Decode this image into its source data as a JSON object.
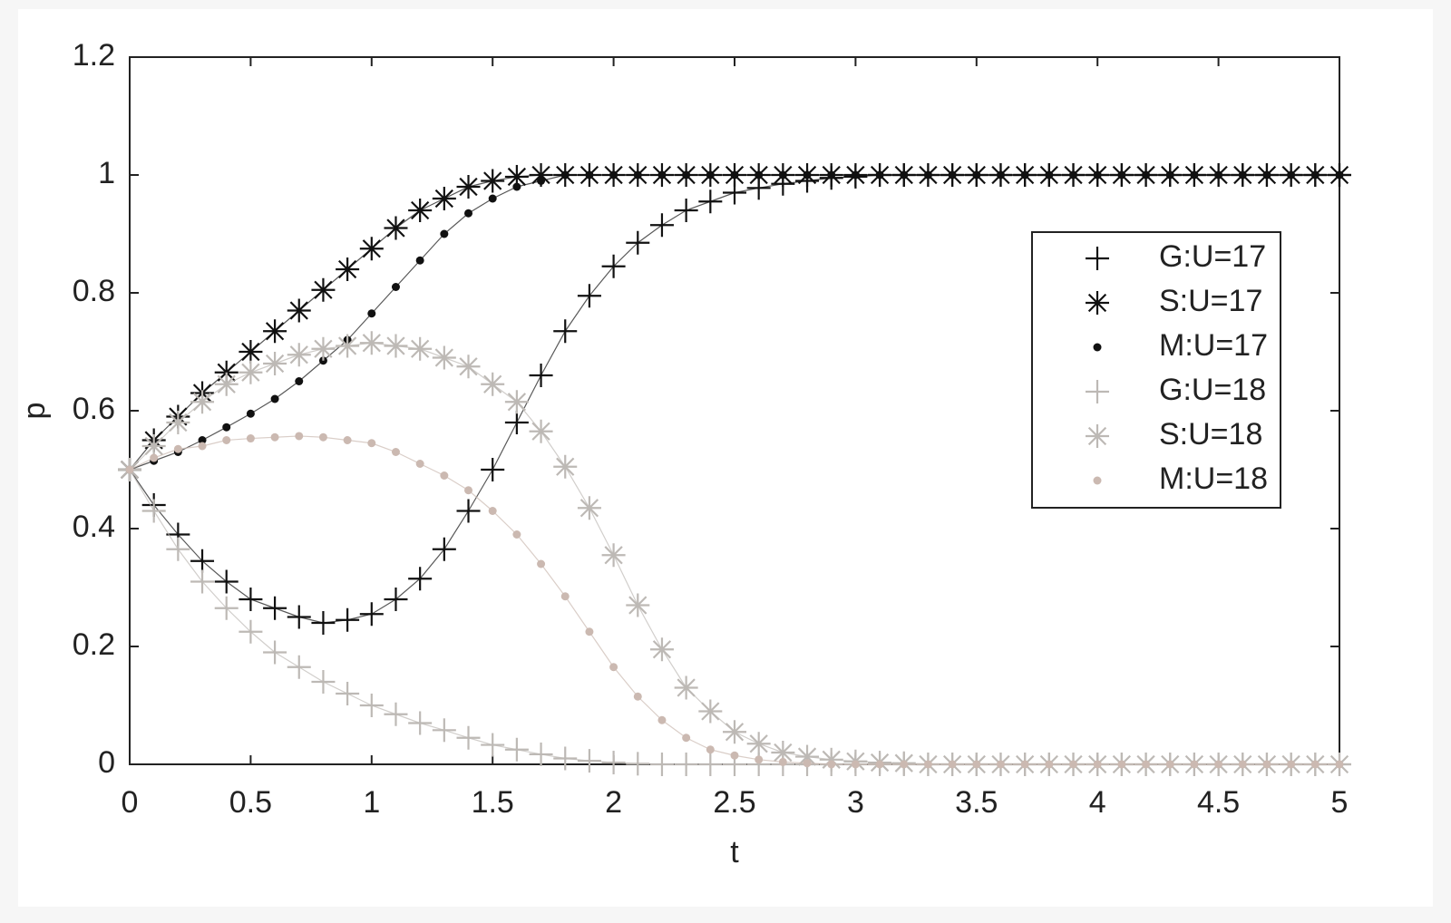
{
  "chart_data": {
    "type": "line",
    "x_label": "t",
    "y_label": "p",
    "x": [
      0,
      0.1,
      0.2,
      0.3,
      0.4,
      0.5,
      0.6,
      0.7,
      0.8,
      0.9,
      1.0,
      1.1,
      1.2,
      1.3,
      1.4,
      1.5,
      1.6,
      1.7,
      1.8,
      1.9,
      2.0,
      2.1,
      2.2,
      2.3,
      2.4,
      2.5,
      2.6,
      2.7,
      2.8,
      2.9,
      3.0,
      3.1,
      3.2,
      3.3,
      3.4,
      3.5,
      3.6,
      3.7,
      3.8,
      3.9,
      4.0,
      4.1,
      4.2,
      4.3,
      4.4,
      4.5,
      4.6,
      4.7,
      4.8,
      4.9,
      5.0
    ],
    "series": [
      {
        "name": "G:U=17",
        "color": "#111111",
        "marker": "plus",
        "values": [
          0.5,
          0.44,
          0.39,
          0.345,
          0.31,
          0.28,
          0.265,
          0.25,
          0.24,
          0.245,
          0.255,
          0.28,
          0.315,
          0.365,
          0.43,
          0.5,
          0.58,
          0.66,
          0.735,
          0.795,
          0.845,
          0.885,
          0.915,
          0.94,
          0.955,
          0.97,
          0.978,
          0.985,
          0.99,
          0.995,
          0.997,
          1,
          1,
          1,
          1,
          1,
          1,
          1,
          1,
          1,
          1,
          1,
          1,
          1,
          1,
          1,
          1,
          1,
          1,
          1,
          1
        ]
      },
      {
        "name": "S:U=17",
        "color": "#111111",
        "marker": "star",
        "values": [
          0.5,
          0.55,
          0.59,
          0.63,
          0.665,
          0.7,
          0.735,
          0.77,
          0.805,
          0.84,
          0.875,
          0.91,
          0.94,
          0.96,
          0.98,
          0.99,
          0.997,
          1,
          1,
          1,
          1,
          1,
          1,
          1,
          1,
          1,
          1,
          1,
          1,
          1,
          1,
          1,
          1,
          1,
          1,
          1,
          1,
          1,
          1,
          1,
          1,
          1,
          1,
          1,
          1,
          1,
          1,
          1,
          1,
          1,
          1
        ]
      },
      {
        "name": "M:U=17",
        "color": "#111111",
        "marker": "dot",
        "values": [
          0.5,
          0.515,
          0.53,
          0.55,
          0.572,
          0.595,
          0.62,
          0.65,
          0.685,
          0.72,
          0.765,
          0.81,
          0.855,
          0.9,
          0.935,
          0.96,
          0.98,
          0.99,
          1,
          1,
          1,
          1,
          1,
          1,
          1,
          1,
          1,
          1,
          1,
          1,
          1,
          1,
          1,
          1,
          1,
          1,
          1,
          1,
          1,
          1,
          1,
          1,
          1,
          1,
          1,
          1,
          1,
          1,
          1,
          1,
          1
        ]
      },
      {
        "name": "G:U=18",
        "color": "#bdb9b5",
        "marker": "plus",
        "values": [
          0.5,
          0.43,
          0.365,
          0.31,
          0.265,
          0.225,
          0.19,
          0.165,
          0.14,
          0.12,
          0.1,
          0.085,
          0.07,
          0.058,
          0.045,
          0.033,
          0.025,
          0.017,
          0.01,
          0.006,
          0.003,
          0.001,
          0,
          0,
          0,
          0,
          0,
          0,
          0,
          0,
          0,
          0,
          0,
          0,
          0,
          0,
          0,
          0,
          0,
          0,
          0,
          0,
          0,
          0,
          0,
          0,
          0,
          0,
          0,
          0,
          0
        ]
      },
      {
        "name": "S:U=18",
        "color": "#bdb9b5",
        "marker": "star",
        "values": [
          0.5,
          0.54,
          0.58,
          0.615,
          0.645,
          0.665,
          0.68,
          0.695,
          0.705,
          0.71,
          0.715,
          0.71,
          0.705,
          0.69,
          0.675,
          0.645,
          0.615,
          0.565,
          0.505,
          0.435,
          0.355,
          0.27,
          0.195,
          0.13,
          0.09,
          0.055,
          0.035,
          0.02,
          0.013,
          0.008,
          0.005,
          0.003,
          0.002,
          0,
          0,
          0,
          0,
          0,
          0,
          0,
          0,
          0,
          0,
          0,
          0,
          0,
          0,
          0,
          0,
          0,
          0
        ]
      },
      {
        "name": "M:U=18",
        "color": "#cbb9b1",
        "marker": "dot",
        "values": [
          0.5,
          0.52,
          0.535,
          0.54,
          0.55,
          0.553,
          0.555,
          0.557,
          0.555,
          0.55,
          0.545,
          0.53,
          0.51,
          0.49,
          0.465,
          0.43,
          0.39,
          0.34,
          0.285,
          0.225,
          0.165,
          0.115,
          0.075,
          0.045,
          0.025,
          0.015,
          0.008,
          0.004,
          0.002,
          0,
          0,
          0,
          0,
          0,
          0,
          0,
          0,
          0,
          0,
          0,
          0,
          0,
          0,
          0,
          0,
          0,
          0,
          0,
          0,
          0,
          0
        ]
      }
    ],
    "xlim": [
      0,
      5
    ],
    "xticks": [
      0,
      0.5,
      1,
      1.5,
      2,
      2.5,
      3,
      3.5,
      4,
      4.5,
      5
    ],
    "ylim": [
      0,
      1.2
    ],
    "yticks": [
      0,
      0.2,
      0.4,
      0.6,
      0.8,
      1,
      1.2
    ],
    "grid": false,
    "legend_loc": "center right"
  }
}
